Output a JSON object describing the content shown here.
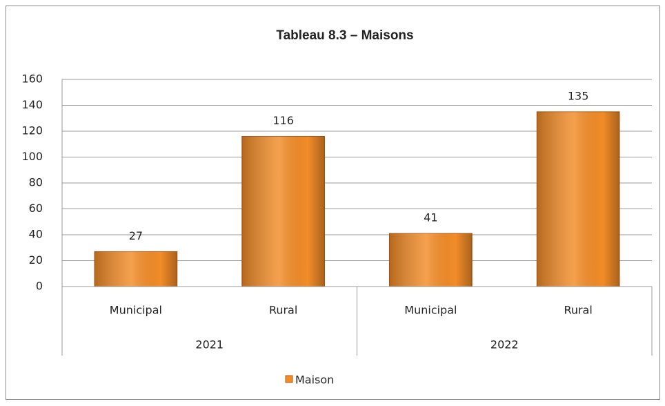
{
  "chart_data": {
    "type": "bar",
    "title": "Tableau 8.3 – Maisons",
    "categories": [
      "Municipal",
      "Rural",
      "Municipal",
      "Rural"
    ],
    "category_groups": [
      {
        "name": "2021",
        "categories": [
          "Municipal",
          "Rural"
        ]
      },
      {
        "name": "2022",
        "categories": [
          "Municipal",
          "Rural"
        ]
      }
    ],
    "series": [
      {
        "name": "Maison",
        "color": "#f28c28",
        "values": [
          27,
          116,
          41,
          135
        ]
      }
    ],
    "ylim": [
      0,
      160
    ],
    "yticks": [
      0,
      20,
      40,
      60,
      80,
      100,
      120,
      140,
      160
    ],
    "grid": true,
    "legend": "bottom"
  }
}
